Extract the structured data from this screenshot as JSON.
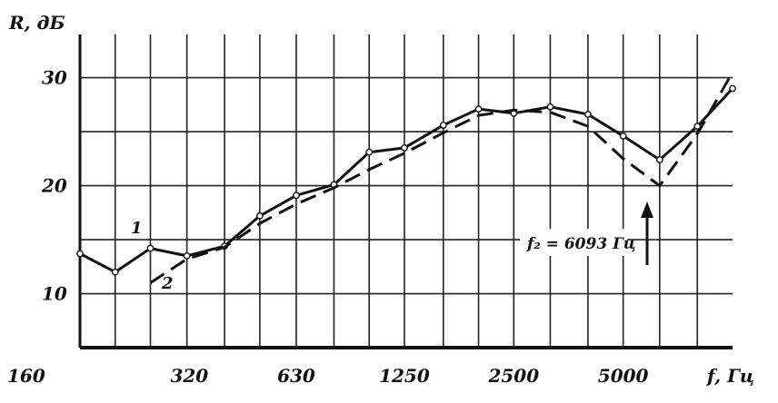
{
  "chart_data": {
    "type": "line",
    "title": "",
    "ylabel": "R, дБ",
    "xlabel": "f, Гц",
    "x_scale": "log",
    "xlim": [
      160,
      10000
    ],
    "ylim": [
      5,
      34
    ],
    "grid": true,
    "x_ticks": [
      "160",
      "320",
      "630",
      "1250",
      "2500",
      "5000"
    ],
    "y_ticks": [
      "10",
      "20",
      "30"
    ],
    "series": [
      {
        "name": "1",
        "style": "solid-with-markers",
        "x": [
          160,
          200,
          250,
          315,
          400,
          500,
          630,
          800,
          1000,
          1250,
          1600,
          2000,
          2500,
          3150,
          4000,
          5000,
          6300,
          8000,
          10000
        ],
        "y": [
          13.7,
          12.0,
          14.2,
          13.5,
          14.4,
          17.2,
          19.1,
          20.1,
          23.1,
          23.5,
          25.6,
          27.1,
          26.7,
          27.3,
          26.6,
          24.6,
          22.4,
          25.5,
          29.0
        ]
      },
      {
        "name": "2",
        "style": "dashed",
        "x": [
          250,
          315,
          400,
          500,
          630,
          800,
          1000,
          1250,
          1600,
          2000,
          2500,
          3150,
          4000,
          5000,
          6300,
          8000,
          10000
        ],
        "y": [
          11.0,
          13.2,
          14.3,
          16.5,
          18.3,
          19.8,
          21.5,
          23.0,
          24.9,
          26.5,
          27.0,
          26.8,
          25.5,
          22.5,
          20.0,
          24.8,
          30.5
        ]
      }
    ],
    "annotations": [
      {
        "text": "f₂ = 6093 Гц"
      },
      {
        "text": "1"
      },
      {
        "text": "2"
      }
    ]
  }
}
